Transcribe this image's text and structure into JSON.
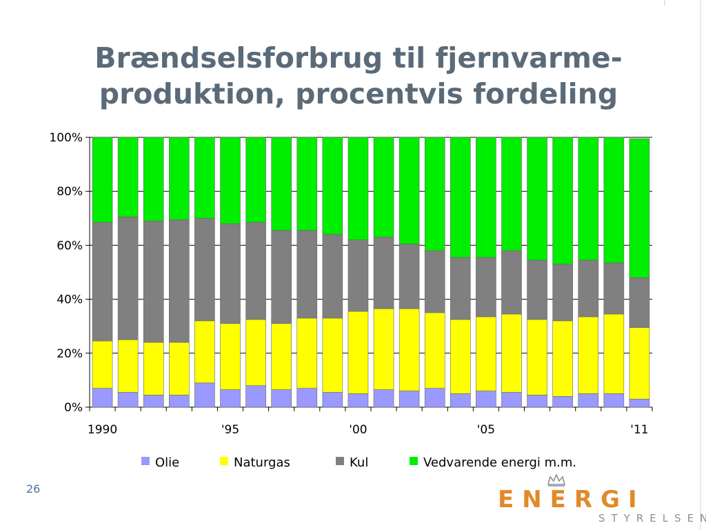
{
  "slide": {
    "title_line1": "Brændselsforbrug til fjernvarme-",
    "title_line2": "produktion, procentvis fordeling",
    "page_number": "26"
  },
  "logo": {
    "word": "ENERGI",
    "sub": "STYRELSEN"
  },
  "colors": {
    "title": "#5a6a78",
    "olie": "#9999ff",
    "naturgas": "#ffff00",
    "kul": "#808080",
    "vedvarende": "#00ee00",
    "logo_orange": "#e08a2a"
  },
  "chart_data": {
    "type": "bar",
    "stacked": true,
    "title": "",
    "xlabel": "",
    "ylabel": "",
    "ylim": [
      0,
      100
    ],
    "y_ticks": [
      "0%",
      "20%",
      "40%",
      "60%",
      "80%",
      "100%"
    ],
    "grid": true,
    "legend_position": "bottom",
    "categories": [
      "1990",
      "1991",
      "1992",
      "1993",
      "1994",
      "1995",
      "1996",
      "1997",
      "1998",
      "1999",
      "2000",
      "2001",
      "2002",
      "2003",
      "2004",
      "2005",
      "2006",
      "2007",
      "2008",
      "2009",
      "2010",
      "2011"
    ],
    "x_tick_labels": [
      {
        "index": 0,
        "label": "1990"
      },
      {
        "index": 5,
        "label": "'95"
      },
      {
        "index": 10,
        "label": "'00"
      },
      {
        "index": 15,
        "label": "'05"
      },
      {
        "index": 21,
        "label": "'11"
      }
    ],
    "series": [
      {
        "name": "Olie",
        "color": "#9999ff",
        "values": [
          7.0,
          5.5,
          4.5,
          4.5,
          9.0,
          6.5,
          8.0,
          6.5,
          7.0,
          5.5,
          5.0,
          6.5,
          6.0,
          7.0,
          5.0,
          6.0,
          5.5,
          4.5,
          4.0,
          5.0,
          5.0,
          3.0
        ]
      },
      {
        "name": "Naturgas",
        "color": "#ffff00",
        "values": [
          17.5,
          19.5,
          19.5,
          19.5,
          23.0,
          24.5,
          24.5,
          24.5,
          26.0,
          27.5,
          30.5,
          30.0,
          30.5,
          28.0,
          27.5,
          27.5,
          29.0,
          28.0,
          28.0,
          28.5,
          29.5,
          26.5
        ]
      },
      {
        "name": "Kul",
        "color": "#808080",
        "values": [
          44.0,
          45.5,
          45.0,
          45.5,
          38.0,
          37.0,
          36.0,
          34.5,
          32.5,
          31.0,
          26.5,
          26.5,
          24.0,
          23.0,
          23.0,
          22.0,
          23.5,
          22.0,
          21.0,
          21.0,
          19.0,
          18.5
        ]
      },
      {
        "name": "Vedvarende energi m.m.",
        "color": "#00ee00",
        "values": [
          31.5,
          29.5,
          31.0,
          30.5,
          30.0,
          32.0,
          31.5,
          34.5,
          34.5,
          36.0,
          38.0,
          37.0,
          39.5,
          42.0,
          44.5,
          44.5,
          42.0,
          45.5,
          47.0,
          45.5,
          46.5,
          51.5
        ]
      }
    ]
  }
}
